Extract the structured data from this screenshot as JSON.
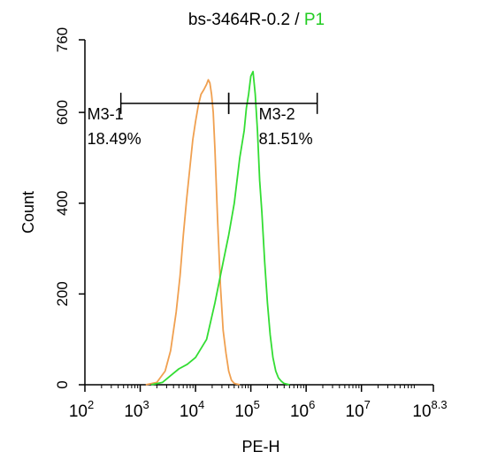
{
  "chart_data": {
    "type": "line",
    "title": {
      "main": "bs-3464R-0.2",
      "separator": " / ",
      "gate": "P1",
      "gate_color": "#22cc22"
    },
    "xlabel": "PE-H",
    "ylabel": "Count",
    "x_scale": "log10",
    "xlim_log10": [
      2,
      8.3
    ],
    "ylim": [
      0,
      760
    ],
    "x_ticks": [
      {
        "base": "10",
        "exp": "2"
      },
      {
        "base": "10",
        "exp": "3"
      },
      {
        "base": "10",
        "exp": "4"
      },
      {
        "base": "10",
        "exp": "5"
      },
      {
        "base": "10",
        "exp": "6"
      },
      {
        "base": "10",
        "exp": "7"
      },
      {
        "base": "10",
        "exp": "8.3"
      }
    ],
    "y_ticks": [
      "0",
      "200",
      "400",
      "600",
      "760"
    ],
    "grid": false,
    "series": [
      {
        "color": "#f0a050",
        "log10_x": [
          3.1,
          3.3,
          3.45,
          3.55,
          3.65,
          3.72,
          3.78,
          3.84,
          3.9,
          3.95,
          4.0,
          4.05,
          4.1,
          4.15,
          4.2,
          4.23,
          4.26,
          4.29,
          4.32,
          4.35,
          4.4,
          4.45,
          4.5,
          4.55,
          4.6,
          4.65,
          4.7,
          4.8
        ],
        "counts": [
          0,
          5,
          30,
          75,
          160,
          240,
          330,
          410,
          480,
          540,
          580,
          615,
          640,
          650,
          662,
          672,
          665,
          640,
          600,
          520,
          360,
          220,
          120,
          70,
          30,
          10,
          3,
          0
        ]
      },
      {
        "color": "#33dd33",
        "log10_x": [
          3.2,
          3.4,
          3.55,
          3.7,
          3.85,
          4.0,
          4.2,
          4.35,
          4.5,
          4.6,
          4.7,
          4.8,
          4.88,
          4.92,
          4.96,
          5.0,
          5.04,
          5.08,
          5.12,
          5.16,
          5.2,
          5.25,
          5.3,
          5.35,
          5.4,
          5.45,
          5.5,
          5.55,
          5.6,
          5.7
        ],
        "counts": [
          0,
          5,
          20,
          35,
          45,
          60,
          100,
          180,
          270,
          330,
          400,
          500,
          560,
          610,
          640,
          680,
          690,
          640,
          560,
          450,
          380,
          270,
          180,
          110,
          60,
          30,
          15,
          8,
          3,
          0
        ]
      }
    ],
    "markers": [
      {
        "label": "M3-1",
        "percent": "18.49%",
        "range_log10": [
          2.65,
          4.6
        ],
        "height": 620
      },
      {
        "label": "M3-2",
        "percent": "81.51%",
        "range_log10": [
          4.6,
          6.2
        ],
        "height": 620
      }
    ]
  }
}
